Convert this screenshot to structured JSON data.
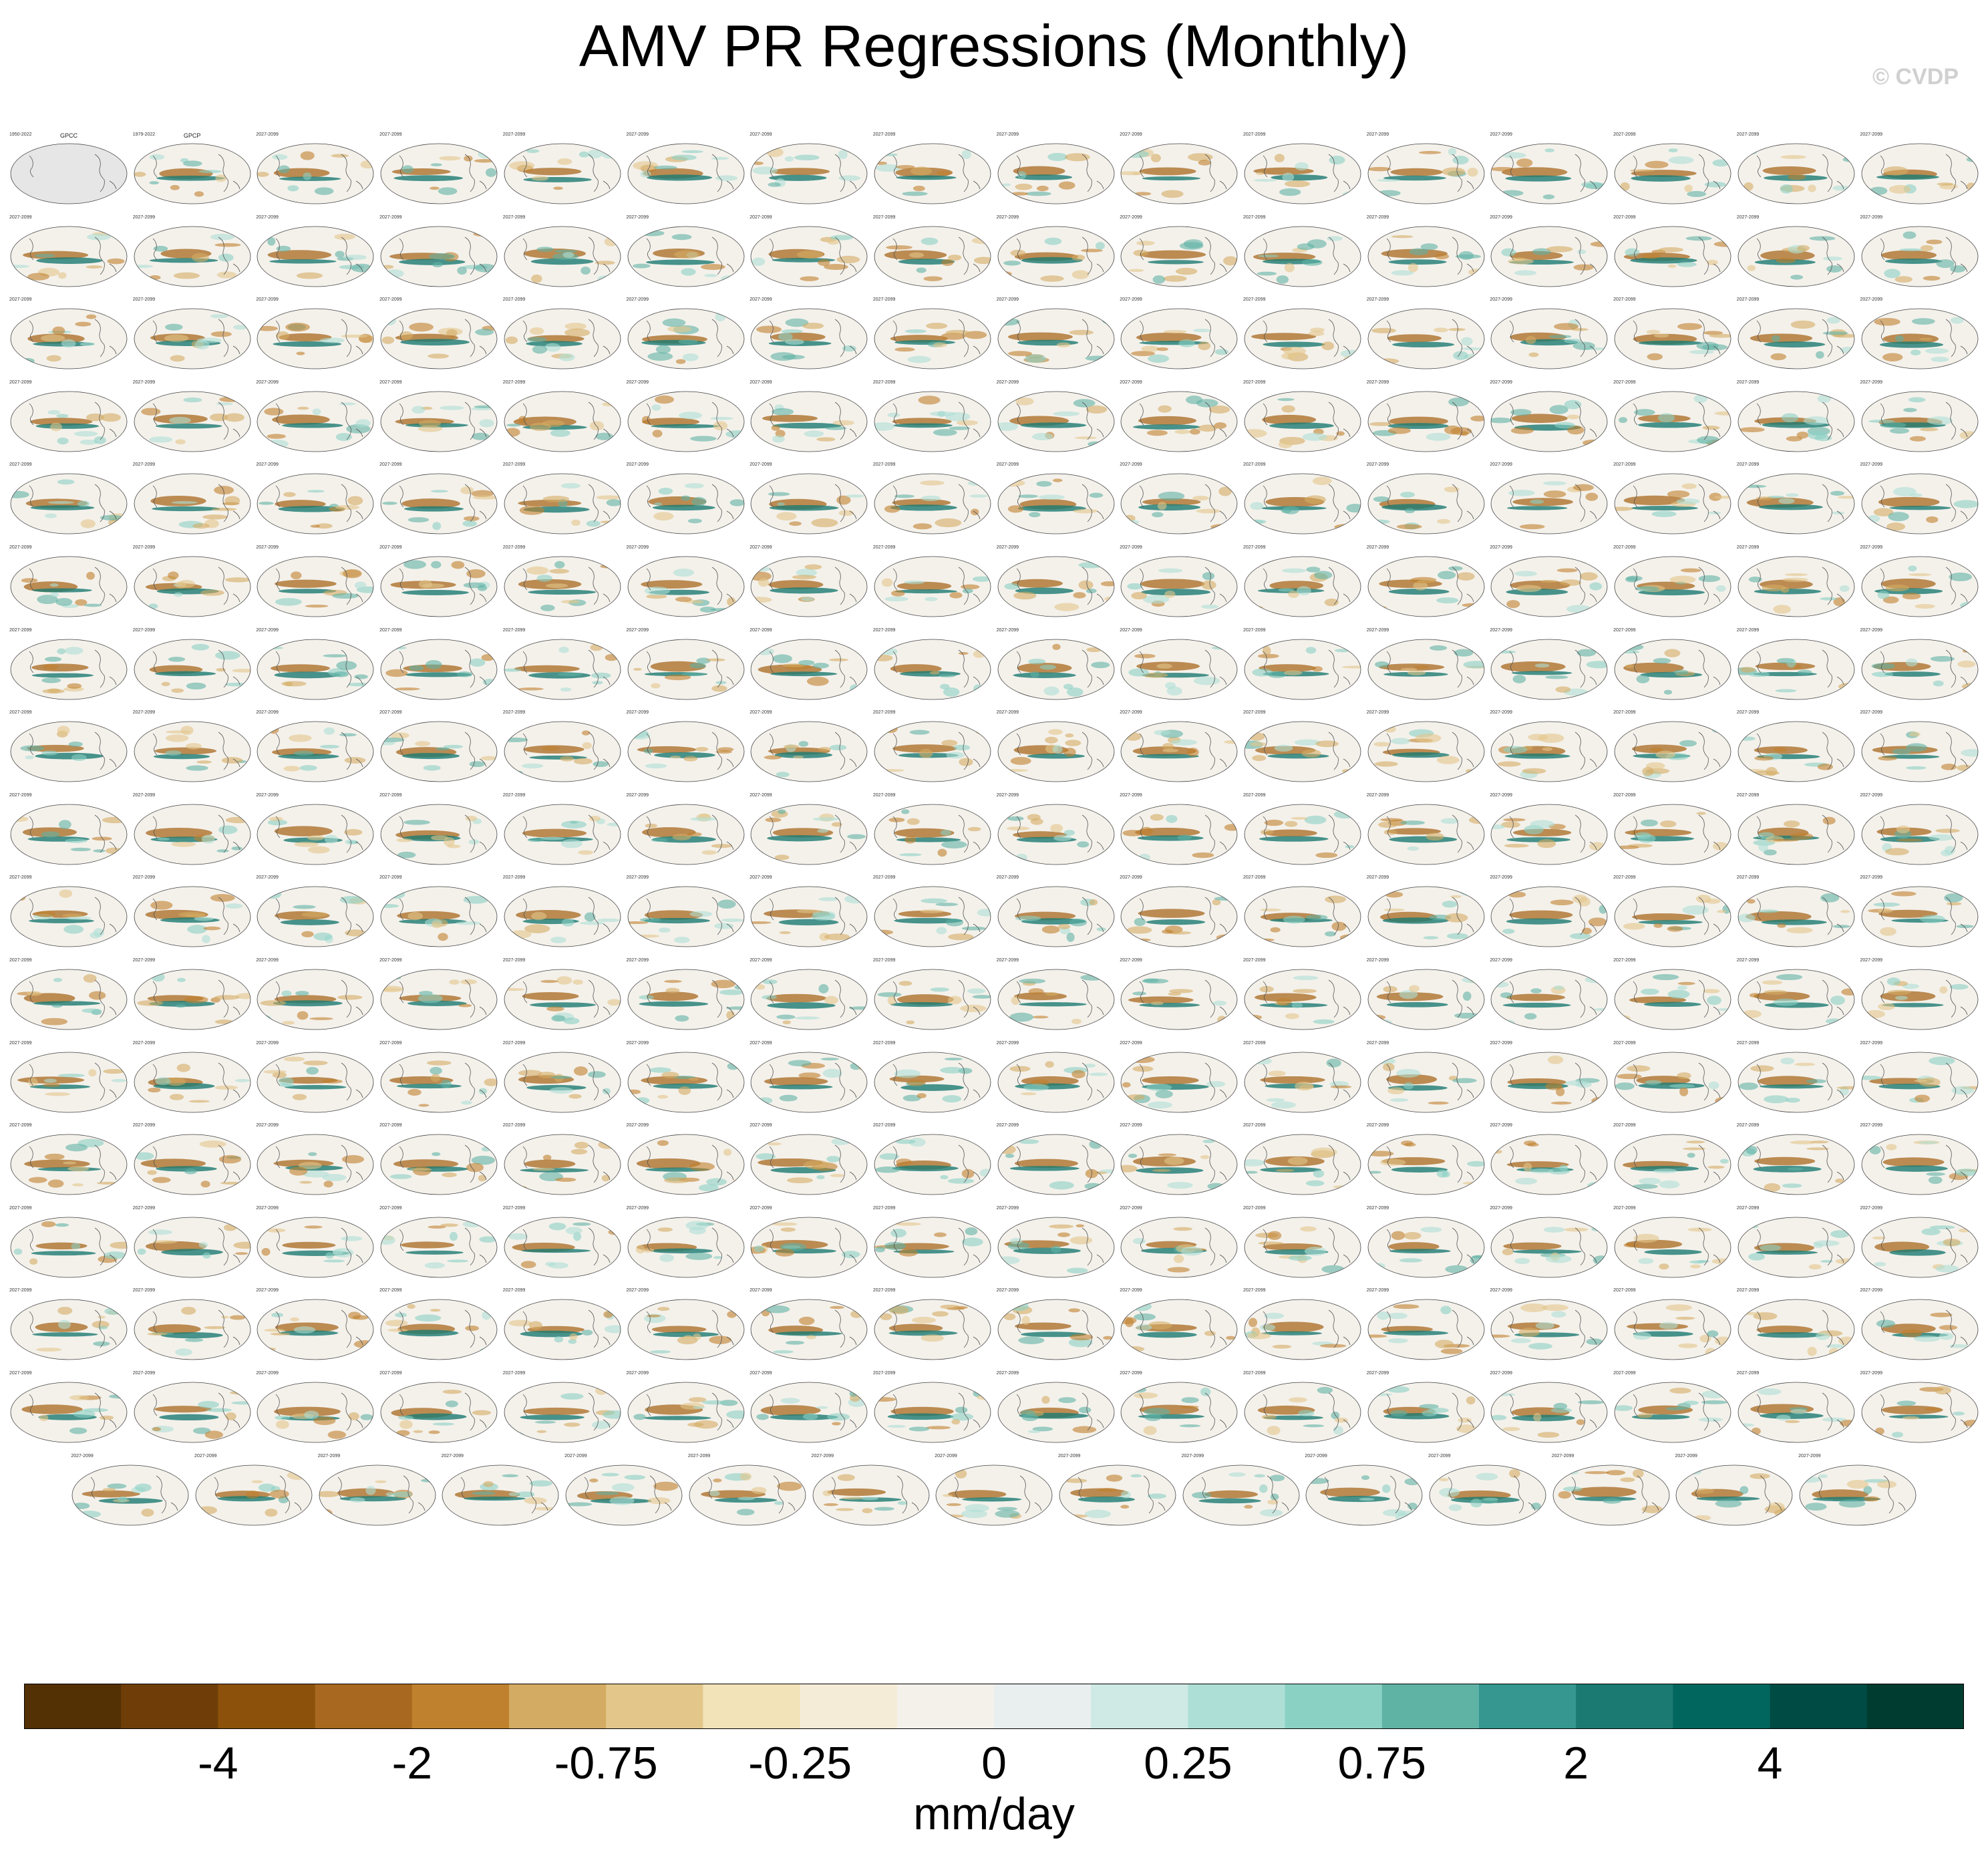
{
  "title": "AMV PR Regressions (Monthly)",
  "watermark": "© CVDP",
  "chart_data": {
    "type": "heatmap",
    "description_kind": "grid of global map panels",
    "title": "AMV PR Regressions (Monthly)",
    "units": "mm/day",
    "colorbar": {
      "colors": [
        "#543005",
        "#6f3e08",
        "#8c510a",
        "#a8681f",
        "#bf812d",
        "#d4ab62",
        "#e3c78a",
        "#f2e3b8",
        "#f5ecd8",
        "#f4f1eb",
        "#e9efee",
        "#cfe9e4",
        "#addfd6",
        "#8ad1c4",
        "#5fb3a5",
        "#35978f",
        "#1b7a72",
        "#01665e",
        "#014b45",
        "#003c30"
      ],
      "tick_labels": [
        "-4",
        "-2",
        "-0.75",
        "-0.25",
        "0",
        "0.25",
        "0.75",
        "2",
        "4"
      ],
      "tick_boundaries": [
        2,
        4,
        6,
        8,
        10,
        12,
        14,
        16,
        18
      ]
    },
    "panel_rows": 17,
    "panel_columns": 16,
    "final_row_panels": 15,
    "total_panels": 271,
    "observations": [
      {
        "name": "GPCC",
        "years": "1950-2022"
      },
      {
        "name": "GPCP",
        "years": "1979-2022"
      }
    ],
    "model_years": "2027-2099"
  }
}
